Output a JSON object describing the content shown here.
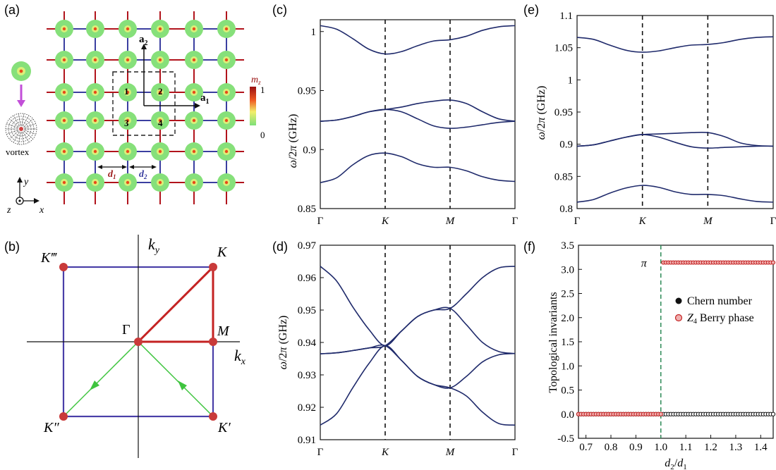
{
  "panels": {
    "a": "(a)",
    "b": "(b)",
    "c": "(c)",
    "d": "(d)",
    "e": "(e)",
    "f": "(f)"
  },
  "lattice": {
    "a1": "a",
    "a1_sub": "1",
    "a2": "a",
    "a2_sub": "2",
    "site1": "1",
    "site2": "2",
    "site3": "3",
    "site4": "4",
    "d1": "d",
    "d1_sub": "1",
    "d2": "d",
    "d2_sub": "2",
    "vortex": "vortex",
    "mz": "m",
    "mz_sub": "z",
    "scale_max": "1",
    "scale_min": "0",
    "axis_x": "x",
    "axis_y": "y",
    "axis_z": "z",
    "colors": {
      "disk": "#86e07a",
      "ring": "#d9f07a",
      "core": "#e84a1a",
      "bond_red": "#b1141c",
      "bond_blue": "#3b3fa0"
    }
  },
  "bz": {
    "kx": "k",
    "kx_sub": "x",
    "ky": "k",
    "ky_sub": "y",
    "Gamma": "Γ",
    "K": "K",
    "M": "M",
    "Kp": "K′",
    "Kpp": "K″",
    "Kppp": "K‴",
    "colors": {
      "square": "#4a3fa8",
      "path": "#c42222",
      "arrows": "#3ec43e",
      "points": "#c93a3a"
    }
  },
  "chart_data": [
    {
      "panel": "c",
      "type": "line",
      "ylabel": "ω/2π (GHz)",
      "ylim": [
        0.85,
        1.01
      ],
      "yticks": [
        "0.85",
        "0.9",
        "0.95",
        "1"
      ],
      "ytick_vals": [
        0.85,
        0.9,
        0.95,
        1.0
      ],
      "xticks": [
        "Γ",
        "K",
        "M",
        "Γ"
      ],
      "series": [
        {
          "name": "band1",
          "x": [
            0,
            0.25,
            0.5,
            0.75,
            1,
            1.25,
            1.5,
            1.75,
            2,
            2.25,
            2.5,
            2.75,
            3
          ],
          "values": [
            0.872,
            0.876,
            0.887,
            0.895,
            0.897,
            0.894,
            0.888,
            0.885,
            0.885,
            0.882,
            0.877,
            0.874,
            0.873
          ]
        },
        {
          "name": "band2",
          "x": [
            0,
            0.25,
            0.5,
            0.75,
            1,
            1.25,
            1.5,
            1.75,
            2,
            2.25,
            2.5,
            2.75,
            3
          ],
          "values": [
            0.924,
            0.925,
            0.928,
            0.932,
            0.934,
            0.932,
            0.926,
            0.92,
            0.918,
            0.919,
            0.921,
            0.923,
            0.924
          ]
        },
        {
          "name": "band3",
          "x": [
            0,
            0.25,
            0.5,
            0.75,
            1,
            1.25,
            1.5,
            1.75,
            2,
            2.25,
            2.5,
            2.75,
            3
          ],
          "values": [
            0.924,
            0.925,
            0.928,
            0.932,
            0.934,
            0.936,
            0.939,
            0.941,
            0.942,
            0.939,
            0.932,
            0.926,
            0.924
          ]
        },
        {
          "name": "band4",
          "x": [
            0,
            0.25,
            0.5,
            0.75,
            1,
            1.25,
            1.5,
            1.75,
            2,
            2.25,
            2.5,
            2.75,
            3
          ],
          "values": [
            1.005,
            1.002,
            0.994,
            0.985,
            0.981,
            0.983,
            0.988,
            0.992,
            0.993,
            0.996,
            1.001,
            1.004,
            1.005
          ]
        }
      ]
    },
    {
      "panel": "d",
      "type": "line",
      "ylabel": "ω/2π (GHz)",
      "ylim": [
        0.91,
        0.97
      ],
      "yticks": [
        "0.91",
        "0.92",
        "0.93",
        "0.94",
        "0.95",
        "0.96",
        "0.97"
      ],
      "ytick_vals": [
        0.91,
        0.92,
        0.93,
        0.94,
        0.95,
        0.96,
        0.97
      ],
      "xticks": [
        "Γ",
        "K",
        "M",
        "Γ"
      ],
      "series": [
        {
          "name": "band1",
          "x": [
            0,
            0.25,
            0.5,
            0.75,
            1,
            1.25,
            1.5,
            1.75,
            2,
            2.25,
            2.5,
            2.75,
            3
          ],
          "values": [
            0.9145,
            0.918,
            0.926,
            0.9335,
            0.939,
            0.9345,
            0.9295,
            0.927,
            0.926,
            0.9235,
            0.9185,
            0.915,
            0.9145
          ]
        },
        {
          "name": "band2",
          "x": [
            0,
            0.25,
            0.5,
            0.75,
            1,
            1.25,
            1.5,
            1.75,
            2,
            2.25,
            2.5,
            2.75,
            3
          ],
          "values": [
            0.9365,
            0.9368,
            0.9375,
            0.9383,
            0.939,
            0.9345,
            0.9295,
            0.927,
            0.926,
            0.9295,
            0.934,
            0.9362,
            0.9366
          ]
        },
        {
          "name": "band3",
          "x": [
            0,
            0.25,
            0.5,
            0.75,
            1,
            1.25,
            1.5,
            1.75,
            2,
            2.25,
            2.5,
            2.75,
            3
          ],
          "values": [
            0.9365,
            0.9368,
            0.9375,
            0.9383,
            0.939,
            0.9435,
            0.948,
            0.95,
            0.9505,
            0.9455,
            0.94,
            0.9372,
            0.9366
          ]
        },
        {
          "name": "band4",
          "x": [
            0,
            0.25,
            0.5,
            0.75,
            1,
            1.25,
            1.5,
            1.75,
            2,
            2.25,
            2.5,
            2.75,
            3
          ],
          "values": [
            0.9635,
            0.959,
            0.951,
            0.944,
            0.939,
            0.9435,
            0.948,
            0.95,
            0.9505,
            0.955,
            0.96,
            0.963,
            0.9635
          ]
        }
      ]
    },
    {
      "panel": "e",
      "type": "line",
      "ylabel": "ω/2π (GHz)",
      "ylim": [
        0.8,
        1.1
      ],
      "yticks": [
        "0.8",
        "0.85",
        "0.9",
        "0.95",
        "1",
        "1.05",
        "1.1"
      ],
      "ytick_vals": [
        0.8,
        0.85,
        0.9,
        0.95,
        1.0,
        1.05,
        1.1
      ],
      "xticks": [
        "Γ",
        "K",
        "M",
        "Γ"
      ],
      "series": [
        {
          "name": "band1",
          "x": [
            0,
            0.25,
            0.5,
            0.75,
            1,
            1.25,
            1.5,
            1.75,
            2,
            2.25,
            2.5,
            2.75,
            3
          ],
          "values": [
            0.81,
            0.814,
            0.824,
            0.832,
            0.836,
            0.833,
            0.826,
            0.822,
            0.822,
            0.82,
            0.815,
            0.811,
            0.81
          ]
        },
        {
          "name": "band2",
          "x": [
            0,
            0.25,
            0.5,
            0.75,
            1,
            1.25,
            1.5,
            1.75,
            2,
            2.25,
            2.5,
            2.75,
            3
          ],
          "values": [
            0.897,
            0.899,
            0.905,
            0.911,
            0.915,
            0.911,
            0.903,
            0.896,
            0.894,
            0.895,
            0.896,
            0.897,
            0.897
          ]
        },
        {
          "name": "band3",
          "x": [
            0,
            0.25,
            0.5,
            0.75,
            1,
            1.25,
            1.5,
            1.75,
            2,
            2.25,
            2.5,
            2.75,
            3
          ],
          "values": [
            0.897,
            0.899,
            0.905,
            0.911,
            0.915,
            0.916,
            0.917,
            0.918,
            0.918,
            0.912,
            0.902,
            0.898,
            0.897
          ]
        },
        {
          "name": "band4",
          "x": [
            0,
            0.25,
            0.5,
            0.75,
            1,
            1.25,
            1.5,
            1.75,
            2,
            2.25,
            2.5,
            2.75,
            3
          ],
          "values": [
            1.066,
            1.063,
            1.054,
            1.046,
            1.043,
            1.045,
            1.05,
            1.054,
            1.055,
            1.058,
            1.063,
            1.066,
            1.067
          ]
        }
      ]
    },
    {
      "panel": "f",
      "type": "scatter",
      "xlabel": "d2/d1",
      "ylabel": "Topological invariants",
      "xlim": [
        0.67,
        1.45
      ],
      "ylim": [
        -0.5,
        3.5
      ],
      "xticks": [
        "0.7",
        "0.8",
        "0.9",
        "1.0",
        "1.1",
        "1.2",
        "1.3",
        "1.4"
      ],
      "xtick_vals": [
        0.7,
        0.8,
        0.9,
        1.0,
        1.1,
        1.2,
        1.3,
        1.4
      ],
      "yticks": [
        "-0.5",
        "0.0",
        "0.5",
        "1.0",
        "1.5",
        "2.0",
        "2.5",
        "3.0",
        "3.5"
      ],
      "ytick_vals": [
        -0.5,
        0.0,
        0.5,
        1.0,
        1.5,
        2.0,
        2.5,
        3.0,
        3.5
      ],
      "transition_x": 1.0,
      "pi_label": "π",
      "legend": [
        {
          "name": "Chern number",
          "color": "#111111"
        },
        {
          "name": "Z4 Berry phase",
          "color": "#d23030",
          "prefix": "Z",
          "sub": "4",
          "rest": " Berry phase"
        }
      ],
      "series": [
        {
          "name": "Chern number",
          "x_start": 0.67,
          "x_end": 1.45,
          "x_step": 0.01,
          "value": 0
        },
        {
          "name": "Z4 Berry phase",
          "segments": [
            {
              "x_start": 0.67,
              "x_end": 1.0,
              "x_step": 0.01,
              "value": 0
            },
            {
              "x_start": 1.01,
              "x_end": 1.45,
              "x_step": 0.01,
              "value": 3.1416
            }
          ]
        }
      ]
    }
  ]
}
